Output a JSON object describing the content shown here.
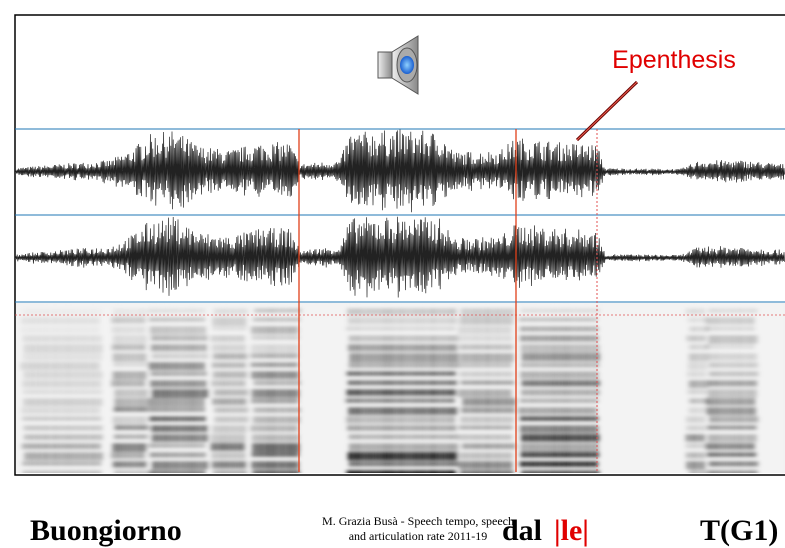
{
  "annotation": "Epenthesis",
  "footer": {
    "line1": "M. Grazia Busà - Speech tempo, speech",
    "line2": "and articulation rate 2011-19"
  },
  "caption": {
    "word1": "Buongiorno",
    "word2": "dal",
    "word3": "|le|",
    "word4": "T(G1)"
  }
}
